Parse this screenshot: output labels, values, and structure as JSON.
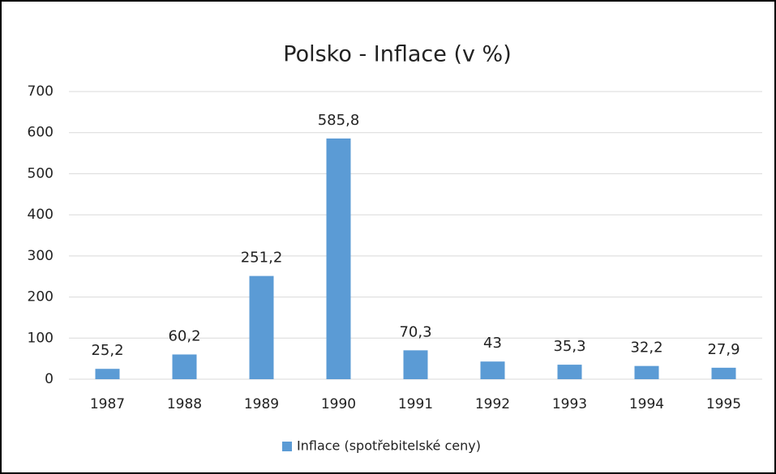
{
  "chart_data": {
    "type": "bar",
    "title": "Polsko - Inflace (v %)",
    "categories": [
      "1987",
      "1988",
      "1989",
      "1990",
      "1991",
      "1992",
      "1993",
      "1994",
      "1995"
    ],
    "series": [
      {
        "name": "Inflace (spotřebitelské ceny)",
        "color": "#5b9bd5",
        "values": [
          25.2,
          60.2,
          251.2,
          585.8,
          70.3,
          43,
          35.3,
          32.2,
          27.9
        ],
        "value_labels": [
          "25,2",
          "60,2",
          "251,2",
          "585,8",
          "70,3",
          "43",
          "35,3",
          "32,2",
          "27,9"
        ]
      }
    ],
    "ylim": [
      0,
      700
    ],
    "yticks": [
      0,
      100,
      200,
      300,
      400,
      500,
      600,
      700
    ],
    "grid": true,
    "legend": "bottom"
  }
}
